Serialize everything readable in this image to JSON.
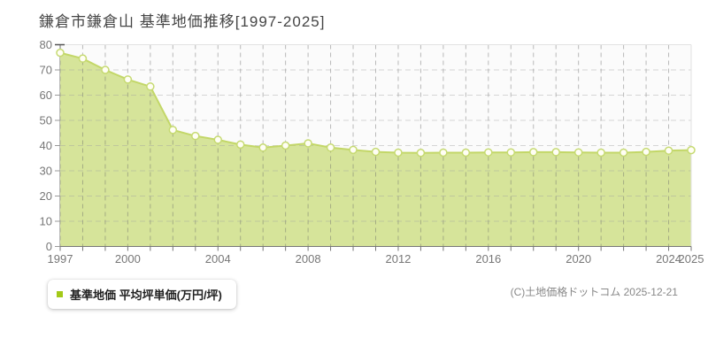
{
  "title": "鎌倉市鎌倉山 基準地価推移[1997-2025]",
  "legend": {
    "label": "基準地価 平均坪単価(万円/坪)",
    "marker_color": "#a3c918"
  },
  "copyright": "(C)土地価格ドットコム 2025-12-21",
  "chart_data": {
    "type": "area",
    "title": "鎌倉市鎌倉山 基準地価推移[1997-2025]",
    "x": [
      1997,
      1998,
      1999,
      2000,
      2001,
      2002,
      2003,
      2004,
      2005,
      2006,
      2007,
      2008,
      2009,
      2010,
      2011,
      2012,
      2013,
      2014,
      2015,
      2016,
      2017,
      2018,
      2019,
      2020,
      2021,
      2022,
      2023,
      2024,
      2025
    ],
    "series": [
      {
        "name": "基準地価 平均坪単価(万円/坪)",
        "values": [
          76.8,
          74.5,
          70.0,
          66.2,
          63.4,
          46.2,
          43.8,
          42.3,
          40.4,
          39.2,
          40.0,
          40.9,
          39.2,
          38.3,
          37.5,
          37.2,
          37.1,
          37.2,
          37.2,
          37.3,
          37.3,
          37.4,
          37.4,
          37.3,
          37.2,
          37.2,
          37.5,
          38.0,
          38.2
        ]
      }
    ],
    "ylim": [
      0,
      80
    ],
    "ytick_step": 10,
    "x_labeled_ticks": [
      1997,
      2000,
      2004,
      2008,
      2012,
      2016,
      2020,
      2024,
      2025
    ],
    "xlabel": "",
    "ylabel": "",
    "grid": true,
    "legend_position": "bottom-left",
    "colors": {
      "area_fill": "#d6e49a",
      "line": "#c3d768",
      "marker_fill": "#fffef4",
      "marker_stroke": "#c6da72",
      "plot_bg": "#fbfbfb",
      "plot_border": "#e2e2e2",
      "axis": "#777777",
      "grid_vertical": "rgba(105,105,105,0.45)",
      "grid_horizontal": "rgba(160,160,160,0.42)",
      "tick_label": "#777777"
    }
  }
}
